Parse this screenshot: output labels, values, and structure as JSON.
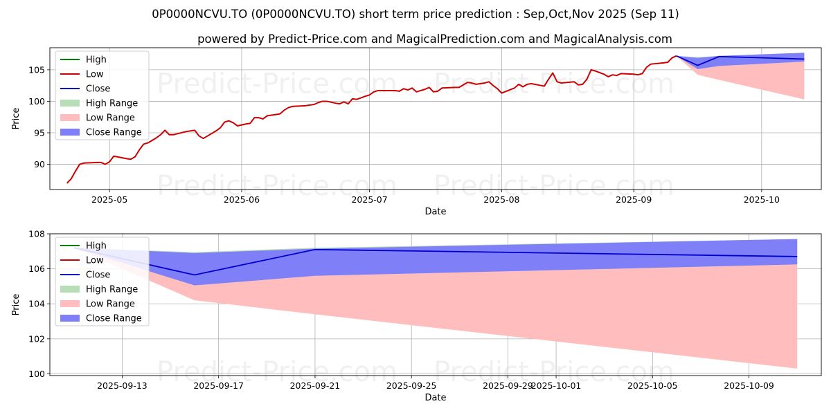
{
  "title": "0P0000NCVU.TO (0P0000NCVU.TO) short term price prediction : Sep,Oct,Nov 2025 (Sep 11)",
  "subtitle": "powered by Predict-Price.com and MagicalPrediction.com and MagicalAnalysis.com",
  "watermark": "Predict-Price.com",
  "colors": {
    "high": "#008000",
    "low": "#cc0000",
    "close": "#0000cc",
    "high_range": "#b7deb7",
    "low_range": "#ffbdbd",
    "close_range": "#7f7ff7"
  },
  "legend": [
    {
      "label": "High",
      "kind": "line",
      "color_key": "high"
    },
    {
      "label": "Low",
      "kind": "line",
      "color_key": "low"
    },
    {
      "label": "Close",
      "kind": "line",
      "color_key": "close"
    },
    {
      "label": "High Range",
      "kind": "patch",
      "color_key": "high_range"
    },
    {
      "label": "Low Range",
      "kind": "patch",
      "color_key": "low_range"
    },
    {
      "label": "Close Range",
      "kind": "patch",
      "color_key": "close_range"
    }
  ],
  "chart_data": [
    {
      "type": "line",
      "name": "history",
      "xlabel": "Date",
      "ylabel": "Price",
      "xlim": [
        "2025-04-17",
        "2025-10-15"
      ],
      "ylim": [
        86,
        108.5
      ],
      "grid": true,
      "legend_position": "upper-left",
      "xticks": [
        {
          "value": "2025-05-01",
          "label": "2025-05"
        },
        {
          "value": "2025-06-01",
          "label": "2025-06"
        },
        {
          "value": "2025-07-01",
          "label": "2025-07"
        },
        {
          "value": "2025-08-01",
          "label": "2025-08"
        },
        {
          "value": "2025-09-01",
          "label": "2025-09"
        },
        {
          "value": "2025-10-01",
          "label": "2025-10"
        }
      ],
      "yticks": [
        90,
        95,
        100,
        105
      ],
      "low_history": [
        [
          "2025-04-21",
          87.0
        ],
        [
          "2025-04-22",
          87.7
        ],
        [
          "2025-04-23",
          88.9
        ],
        [
          "2025-04-24",
          90.0
        ],
        [
          "2025-04-25",
          90.2
        ],
        [
          "2025-04-28",
          90.3
        ],
        [
          "2025-04-29",
          90.3
        ],
        [
          "2025-04-30",
          90.0
        ],
        [
          "2025-05-01",
          90.4
        ],
        [
          "2025-05-02",
          91.3
        ],
        [
          "2025-05-05",
          90.9
        ],
        [
          "2025-05-06",
          90.8
        ],
        [
          "2025-05-07",
          91.2
        ],
        [
          "2025-05-08",
          92.3
        ],
        [
          "2025-05-09",
          93.2
        ],
        [
          "2025-05-10",
          93.4
        ],
        [
          "2025-05-12",
          94.2
        ],
        [
          "2025-05-13",
          94.7
        ],
        [
          "2025-05-14",
          95.4
        ],
        [
          "2025-05-15",
          94.7
        ],
        [
          "2025-05-16",
          94.7
        ],
        [
          "2025-05-19",
          95.2
        ],
        [
          "2025-05-20",
          95.3
        ],
        [
          "2025-05-21",
          95.4
        ],
        [
          "2025-05-22",
          94.5
        ],
        [
          "2025-05-23",
          94.1
        ],
        [
          "2025-05-26",
          95.3
        ],
        [
          "2025-05-27",
          95.8
        ],
        [
          "2025-05-28",
          96.7
        ],
        [
          "2025-05-29",
          96.9
        ],
        [
          "2025-05-30",
          96.6
        ],
        [
          "2025-05-31",
          96.1
        ],
        [
          "2025-06-02",
          96.4
        ],
        [
          "2025-06-03",
          96.5
        ],
        [
          "2025-06-04",
          97.4
        ],
        [
          "2025-06-05",
          97.4
        ],
        [
          "2025-06-06",
          97.2
        ],
        [
          "2025-06-07",
          97.7
        ],
        [
          "2025-06-09",
          97.9
        ],
        [
          "2025-06-10",
          98.0
        ],
        [
          "2025-06-11",
          98.6
        ],
        [
          "2025-06-12",
          99.0
        ],
        [
          "2025-06-13",
          99.2
        ],
        [
          "2025-06-16",
          99.3
        ],
        [
          "2025-06-17",
          99.4
        ],
        [
          "2025-06-18",
          99.5
        ],
        [
          "2025-06-19",
          99.8
        ],
        [
          "2025-06-20",
          100.0
        ],
        [
          "2025-06-21",
          100.0
        ],
        [
          "2025-06-23",
          99.7
        ],
        [
          "2025-06-24",
          99.6
        ],
        [
          "2025-06-25",
          99.9
        ],
        [
          "2025-06-26",
          99.6
        ],
        [
          "2025-06-27",
          100.4
        ],
        [
          "2025-06-28",
          100.3
        ],
        [
          "2025-06-30",
          100.8
        ],
        [
          "2025-07-01",
          101.0
        ],
        [
          "2025-07-02",
          101.5
        ],
        [
          "2025-07-03",
          101.7
        ],
        [
          "2025-07-07",
          101.7
        ],
        [
          "2025-07-08",
          101.6
        ],
        [
          "2025-07-09",
          102.0
        ],
        [
          "2025-07-10",
          101.8
        ],
        [
          "2025-07-11",
          102.1
        ],
        [
          "2025-07-12",
          101.5
        ],
        [
          "2025-07-14",
          101.9
        ],
        [
          "2025-07-15",
          102.2
        ],
        [
          "2025-07-16",
          101.5
        ],
        [
          "2025-07-17",
          101.6
        ],
        [
          "2025-07-18",
          102.1
        ],
        [
          "2025-07-21",
          102.2
        ],
        [
          "2025-07-22",
          102.2
        ],
        [
          "2025-07-23",
          102.6
        ],
        [
          "2025-07-24",
          103.0
        ],
        [
          "2025-07-25",
          102.9
        ],
        [
          "2025-07-26",
          102.7
        ],
        [
          "2025-07-28",
          102.9
        ],
        [
          "2025-07-29",
          103.1
        ],
        [
          "2025-07-30",
          102.5
        ],
        [
          "2025-07-31",
          102.0
        ],
        [
          "2025-08-01",
          101.3
        ],
        [
          "2025-08-04",
          102.1
        ],
        [
          "2025-08-05",
          102.7
        ],
        [
          "2025-08-06",
          102.3
        ],
        [
          "2025-08-07",
          102.7
        ],
        [
          "2025-08-08",
          102.8
        ],
        [
          "2025-08-11",
          102.4
        ],
        [
          "2025-08-12",
          103.5
        ],
        [
          "2025-08-13",
          104.5
        ],
        [
          "2025-08-14",
          103.1
        ],
        [
          "2025-08-15",
          102.9
        ],
        [
          "2025-08-18",
          103.1
        ],
        [
          "2025-08-19",
          102.6
        ],
        [
          "2025-08-20",
          102.7
        ],
        [
          "2025-08-21",
          103.5
        ],
        [
          "2025-08-22",
          105.0
        ],
        [
          "2025-08-23",
          104.8
        ],
        [
          "2025-08-25",
          104.3
        ],
        [
          "2025-08-26",
          103.9
        ],
        [
          "2025-08-27",
          104.2
        ],
        [
          "2025-08-28",
          104.1
        ],
        [
          "2025-08-29",
          104.4
        ],
        [
          "2025-09-01",
          104.3
        ],
        [
          "2025-09-02",
          104.2
        ],
        [
          "2025-09-03",
          104.4
        ],
        [
          "2025-09-04",
          105.4
        ],
        [
          "2025-09-05",
          105.9
        ],
        [
          "2025-09-08",
          106.1
        ],
        [
          "2025-09-09",
          106.2
        ],
        [
          "2025-09-10",
          106.9
        ],
        [
          "2025-09-11",
          107.2
        ]
      ],
      "forecast": {
        "dates": [
          "2025-09-11",
          "2025-09-16",
          "2025-09-21",
          "2025-10-11"
        ],
        "close": [
          107.2,
          105.7,
          107.1,
          106.7
        ],
        "high_range_upper": [
          107.2,
          107.0,
          107.2,
          107.7
        ],
        "high_range_lower": [
          107.2,
          105.1,
          105.6,
          106.3
        ],
        "low_range_upper": [
          107.2,
          105.1,
          105.6,
          106.3
        ],
        "low_range_lower": [
          107.2,
          104.2,
          103.4,
          100.3
        ],
        "close_range_upper": [
          107.2,
          106.9,
          107.2,
          107.7
        ],
        "close_range_lower": [
          107.2,
          105.1,
          105.6,
          106.3
        ]
      }
    },
    {
      "type": "line",
      "name": "forecast-zoom",
      "xlabel": "Date",
      "ylabel": "Price",
      "xlim": [
        "2025-09-10",
        "2025-10-12"
      ],
      "ylim": [
        99.9,
        108.0
      ],
      "grid": true,
      "legend_position": "upper-left",
      "xticks": [
        {
          "value": "2025-09-13",
          "label": "2025-09-13"
        },
        {
          "value": "2025-09-17",
          "label": "2025-09-17"
        },
        {
          "value": "2025-09-21",
          "label": "2025-09-21"
        },
        {
          "value": "2025-09-25",
          "label": "2025-09-25"
        },
        {
          "value": "2025-09-29",
          "label": "2025-09-29"
        },
        {
          "value": "2025-10-01",
          "label": "2025-10-01"
        },
        {
          "value": "2025-10-05",
          "label": "2025-10-05"
        },
        {
          "value": "2025-10-09",
          "label": "2025-10-09"
        }
      ],
      "yticks": [
        100,
        102,
        104,
        106,
        108
      ],
      "forecast": {
        "dates": [
          "2025-09-11",
          "2025-09-16",
          "2025-09-21",
          "2025-10-11"
        ],
        "close": [
          107.2,
          105.65,
          107.1,
          106.7
        ],
        "high_range_upper": [
          107.2,
          106.95,
          107.2,
          107.7
        ],
        "high_range_lower": [
          107.2,
          105.05,
          105.6,
          106.25
        ],
        "low_range_upper": [
          107.2,
          105.05,
          105.6,
          106.25
        ],
        "low_range_lower": [
          107.2,
          104.2,
          103.4,
          100.3
        ],
        "close_range_upper": [
          107.2,
          106.9,
          107.15,
          107.7
        ],
        "close_range_lower": [
          107.2,
          105.05,
          105.6,
          106.25
        ]
      }
    }
  ]
}
